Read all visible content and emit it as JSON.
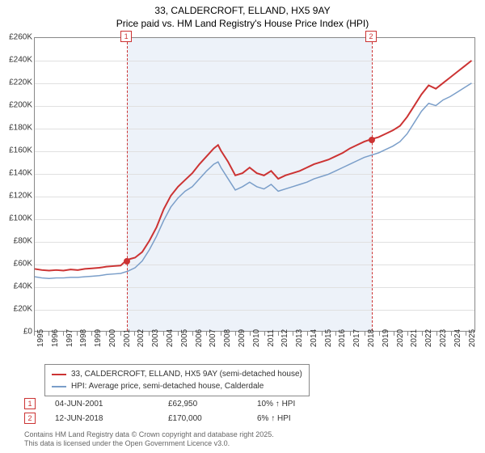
{
  "title": {
    "line1": "33, CALDERCROFT, ELLAND, HX5 9AY",
    "line2": "Price paid vs. HM Land Registry's House Price Index (HPI)"
  },
  "chart": {
    "type": "line",
    "x_range": [
      1995,
      2025.7
    ],
    "ylim": [
      0,
      260000
    ],
    "ytick_step": 20000,
    "y_ticks": [
      0,
      20000,
      40000,
      60000,
      80000,
      100000,
      120000,
      140000,
      160000,
      180000,
      200000,
      220000,
      240000,
      260000
    ],
    "y_tick_labels": [
      "£0",
      "£20K",
      "£40K",
      "£60K",
      "£80K",
      "£100K",
      "£120K",
      "£140K",
      "£160K",
      "£180K",
      "£200K",
      "£220K",
      "£240K",
      "£260K"
    ],
    "x_ticks": [
      1995,
      1996,
      1997,
      1998,
      1999,
      2000,
      2001,
      2002,
      2003,
      2004,
      2005,
      2006,
      2007,
      2008,
      2009,
      2010,
      2011,
      2012,
      2013,
      2014,
      2015,
      2016,
      2017,
      2018,
      2019,
      2020,
      2021,
      2022,
      2023,
      2024,
      2025
    ],
    "grid_color": "#e0e0e0",
    "border_color": "#888888",
    "background_color": "#ffffff",
    "plot_band": {
      "from": 2001.42,
      "to": 2018.45,
      "color": "#edf2f9"
    },
    "series": [
      {
        "name": "price_paid",
        "color": "#cc3333",
        "width": 2,
        "data": [
          [
            1995,
            55000
          ],
          [
            1995.5,
            54000
          ],
          [
            1996,
            53500
          ],
          [
            1996.5,
            54000
          ],
          [
            1997,
            53500
          ],
          [
            1997.5,
            54500
          ],
          [
            1998,
            54000
          ],
          [
            1998.5,
            55000
          ],
          [
            1999,
            55500
          ],
          [
            1999.5,
            56000
          ],
          [
            2000,
            57000
          ],
          [
            2000.5,
            57500
          ],
          [
            2001,
            58000
          ],
          [
            2001.42,
            62950
          ],
          [
            2001.7,
            64000
          ],
          [
            2002,
            65000
          ],
          [
            2002.5,
            70000
          ],
          [
            2003,
            80000
          ],
          [
            2003.5,
            92000
          ],
          [
            2004,
            108000
          ],
          [
            2004.5,
            120000
          ],
          [
            2005,
            128000
          ],
          [
            2005.5,
            134000
          ],
          [
            2006,
            140000
          ],
          [
            2006.5,
            148000
          ],
          [
            2007,
            155000
          ],
          [
            2007.5,
            162000
          ],
          [
            2007.8,
            165000
          ],
          [
            2008,
            160000
          ],
          [
            2008.5,
            150000
          ],
          [
            2009,
            138000
          ],
          [
            2009.5,
            140000
          ],
          [
            2010,
            145000
          ],
          [
            2010.5,
            140000
          ],
          [
            2011,
            138000
          ],
          [
            2011.5,
            142000
          ],
          [
            2012,
            135000
          ],
          [
            2012.5,
            138000
          ],
          [
            2013,
            140000
          ],
          [
            2013.5,
            142000
          ],
          [
            2014,
            145000
          ],
          [
            2014.5,
            148000
          ],
          [
            2015,
            150000
          ],
          [
            2015.5,
            152000
          ],
          [
            2016,
            155000
          ],
          [
            2016.5,
            158000
          ],
          [
            2017,
            162000
          ],
          [
            2017.5,
            165000
          ],
          [
            2018,
            168000
          ],
          [
            2018.45,
            170000
          ],
          [
            2019,
            172000
          ],
          [
            2019.5,
            175000
          ],
          [
            2020,
            178000
          ],
          [
            2020.5,
            182000
          ],
          [
            2021,
            190000
          ],
          [
            2021.5,
            200000
          ],
          [
            2022,
            210000
          ],
          [
            2022.5,
            218000
          ],
          [
            2023,
            215000
          ],
          [
            2023.5,
            220000
          ],
          [
            2024,
            225000
          ],
          [
            2024.5,
            230000
          ],
          [
            2025,
            235000
          ],
          [
            2025.5,
            240000
          ]
        ]
      },
      {
        "name": "hpi",
        "color": "#7a9ec9",
        "width": 1.5,
        "data": [
          [
            1995,
            48000
          ],
          [
            1995.5,
            47000
          ],
          [
            1996,
            46500
          ],
          [
            1996.5,
            47000
          ],
          [
            1997,
            47000
          ],
          [
            1997.5,
            47500
          ],
          [
            1998,
            47500
          ],
          [
            1998.5,
            48000
          ],
          [
            1999,
            48500
          ],
          [
            1999.5,
            49000
          ],
          [
            2000,
            50000
          ],
          [
            2000.5,
            50500
          ],
          [
            2001,
            51000
          ],
          [
            2001.5,
            53000
          ],
          [
            2002,
            56000
          ],
          [
            2002.5,
            62000
          ],
          [
            2003,
            72000
          ],
          [
            2003.5,
            84000
          ],
          [
            2004,
            98000
          ],
          [
            2004.5,
            110000
          ],
          [
            2005,
            118000
          ],
          [
            2005.5,
            124000
          ],
          [
            2006,
            128000
          ],
          [
            2006.5,
            135000
          ],
          [
            2007,
            142000
          ],
          [
            2007.5,
            148000
          ],
          [
            2007.8,
            150000
          ],
          [
            2008,
            145000
          ],
          [
            2008.5,
            135000
          ],
          [
            2009,
            125000
          ],
          [
            2009.5,
            128000
          ],
          [
            2010,
            132000
          ],
          [
            2010.5,
            128000
          ],
          [
            2011,
            126000
          ],
          [
            2011.5,
            130000
          ],
          [
            2012,
            124000
          ],
          [
            2012.5,
            126000
          ],
          [
            2013,
            128000
          ],
          [
            2013.5,
            130000
          ],
          [
            2014,
            132000
          ],
          [
            2014.5,
            135000
          ],
          [
            2015,
            137000
          ],
          [
            2015.5,
            139000
          ],
          [
            2016,
            142000
          ],
          [
            2016.5,
            145000
          ],
          [
            2017,
            148000
          ],
          [
            2017.5,
            151000
          ],
          [
            2018,
            154000
          ],
          [
            2018.5,
            156000
          ],
          [
            2019,
            158000
          ],
          [
            2019.5,
            161000
          ],
          [
            2020,
            164000
          ],
          [
            2020.5,
            168000
          ],
          [
            2021,
            175000
          ],
          [
            2021.5,
            185000
          ],
          [
            2022,
            195000
          ],
          [
            2022.5,
            202000
          ],
          [
            2023,
            200000
          ],
          [
            2023.5,
            205000
          ],
          [
            2024,
            208000
          ],
          [
            2024.5,
            212000
          ],
          [
            2025,
            216000
          ],
          [
            2025.5,
            220000
          ]
        ]
      }
    ],
    "markers": [
      {
        "n": "1",
        "x": 2001.42,
        "y": 62950,
        "color": "#cc3333"
      },
      {
        "n": "2",
        "x": 2018.45,
        "y": 170000,
        "color": "#cc3333"
      }
    ]
  },
  "legend": {
    "items": [
      {
        "color": "#cc3333",
        "label": "33, CALDERCROFT, ELLAND, HX5 9AY (semi-detached house)"
      },
      {
        "color": "#7a9ec9",
        "label": "HPI: Average price, semi-detached house, Calderdale"
      }
    ]
  },
  "transactions": [
    {
      "n": "1",
      "date": "04-JUN-2001",
      "price": "£62,950",
      "delta": "10% ↑ HPI"
    },
    {
      "n": "2",
      "date": "12-JUN-2018",
      "price": "£170,000",
      "delta": "6% ↑ HPI"
    }
  ],
  "footer": {
    "line1": "Contains HM Land Registry data © Crown copyright and database right 2025.",
    "line2": "This data is licensed under the Open Government Licence v3.0."
  }
}
